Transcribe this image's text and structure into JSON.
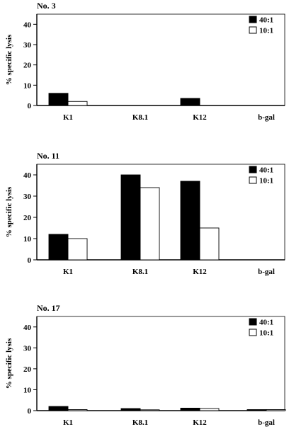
{
  "chart_data": [
    {
      "type": "bar",
      "title": "No. 3",
      "ylabel": "% specific lysis",
      "xlabel": "",
      "ylim": [
        0,
        45
      ],
      "yticks": [
        0,
        10,
        20,
        30,
        40
      ],
      "categories": [
        "K1",
        "K8.1",
        "K12",
        "b-gal"
      ],
      "legend_position": "top-right",
      "series": [
        {
          "name": "40:1",
          "color": "#000000",
          "values": [
            6,
            0,
            3.5,
            0
          ]
        },
        {
          "name": "10:1",
          "color": "#ffffff",
          "values": [
            2,
            0,
            0,
            0
          ]
        }
      ],
      "grid": false
    },
    {
      "type": "bar",
      "title": "No. 11",
      "ylabel": "% specific lysis",
      "xlabel": "",
      "ylim": [
        0,
        45
      ],
      "yticks": [
        0,
        10,
        20,
        30,
        40
      ],
      "categories": [
        "K1",
        "K8.1",
        "K12",
        "b-gal"
      ],
      "legend_position": "top-right",
      "series": [
        {
          "name": "40:1",
          "color": "#000000",
          "values": [
            12,
            40,
            37,
            0
          ]
        },
        {
          "name": "10:1",
          "color": "#ffffff",
          "values": [
            10,
            34,
            15,
            0
          ]
        }
      ],
      "grid": false
    },
    {
      "type": "bar",
      "title": "No. 17",
      "ylabel": "% specific lysis",
      "xlabel": "",
      "ylim": [
        0,
        45
      ],
      "yticks": [
        0,
        10,
        20,
        30,
        40
      ],
      "categories": [
        "K1",
        "K8.1",
        "K12",
        "b-gal"
      ],
      "legend_position": "top-right",
      "series": [
        {
          "name": "40:1",
          "color": "#000000",
          "values": [
            2,
            1,
            1.2,
            0.5
          ]
        },
        {
          "name": "10:1",
          "color": "#ffffff",
          "values": [
            0.5,
            0.4,
            1,
            0.5
          ]
        }
      ],
      "grid": false
    }
  ]
}
